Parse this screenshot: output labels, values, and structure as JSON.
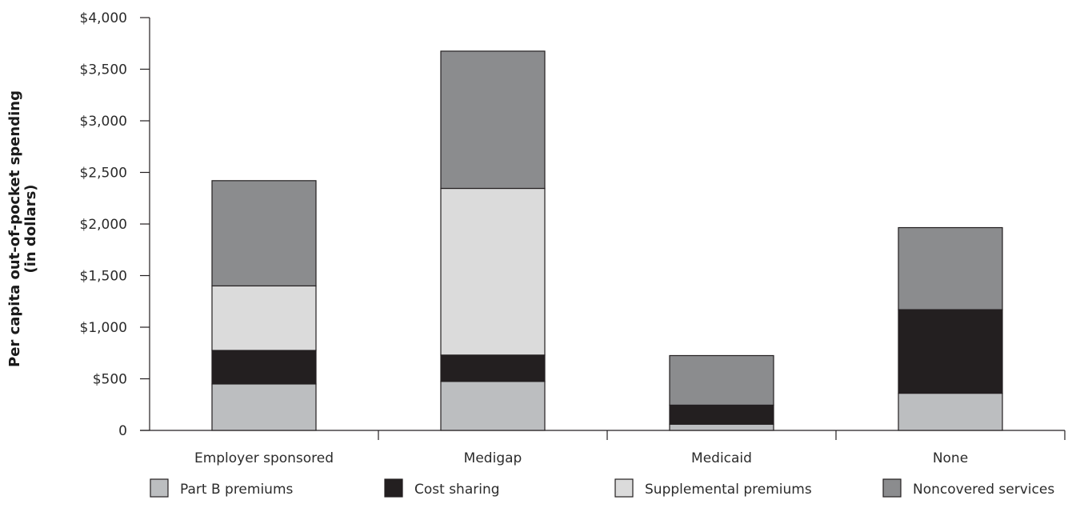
{
  "chart_data": {
    "type": "bar",
    "stacked": true,
    "categories": [
      "Employer sponsored",
      "Medigap",
      "Medicaid",
      "None"
    ],
    "series": [
      {
        "name": "Part B premiums",
        "values": [
          450,
          475,
          60,
          360
        ],
        "color": "#bcbec0"
      },
      {
        "name": "Cost sharing",
        "values": [
          325,
          255,
          185,
          810
        ],
        "color": "#231f20"
      },
      {
        "name": "Supplemental premiums",
        "values": [
          625,
          1615,
          0,
          0
        ],
        "color": "#dbdbdb"
      },
      {
        "name": "Noncovered services",
        "values": [
          1020,
          1330,
          480,
          795
        ],
        "color": "#8b8c8e"
      }
    ],
    "ylabel_lines": [
      "Per capita out-of-pocket spending",
      "(in dollars)"
    ],
    "ylim": [
      0,
      4000
    ],
    "yticks": [
      0,
      500,
      1000,
      1500,
      2000,
      2500,
      3000,
      3500,
      4000
    ],
    "ytick_labels": [
      "0",
      "$500",
      "$1,000",
      "$1,500",
      "$2,000",
      "$2,500",
      "$3,000",
      "$3,500",
      "$4,000"
    ],
    "grid": false,
    "legend_position": "bottom"
  }
}
